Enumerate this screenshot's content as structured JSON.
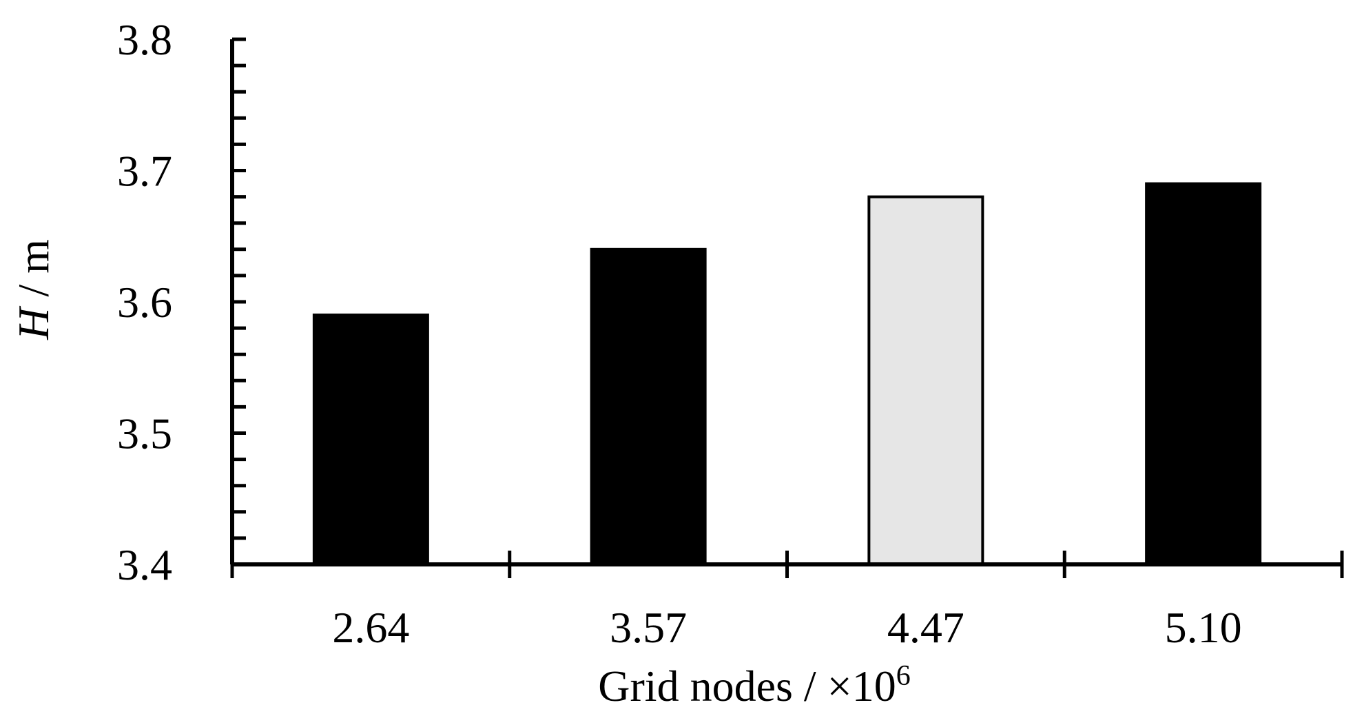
{
  "chart_data": {
    "type": "bar",
    "title": "",
    "categories": [
      "2.64",
      "3.57",
      "4.47",
      "5.10"
    ],
    "values": [
      3.59,
      3.64,
      3.68,
      3.69
    ],
    "bar_colors": [
      "#000000",
      "#000000",
      "#e6e6e6",
      "#000000"
    ],
    "xlabel": "Grid nodes / ×10",
    "xlabel_superscript": "6",
    "ylabel_italic": "H",
    "ylabel_rest": " / m",
    "ylim": [
      3.4,
      3.8
    ],
    "y_ticks": [
      "3.4",
      "3.5",
      "3.6",
      "3.7",
      "3.8"
    ],
    "y_minor_step": 0.02,
    "grid": false,
    "legend": "none"
  }
}
